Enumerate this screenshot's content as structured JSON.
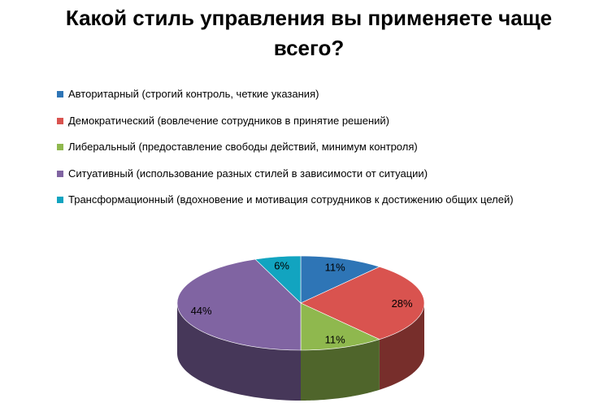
{
  "chart_data": {
    "type": "pie",
    "title": "Какой стиль управления вы применяете чаще всего?",
    "three_d": true,
    "legend_position": "top-left",
    "series": [
      {
        "label": "Авторитарный (строгий контроль, четкие указания)",
        "value": 11,
        "value_label": "11%",
        "color": "#2E75B6"
      },
      {
        "label": "Демократический (вовлечение сотрудников в принятие решений)",
        "value": 28,
        "value_label": "28%",
        "color": "#D9534F"
      },
      {
        "label": "Либеральный (предоставление свободы действий, минимум контроля)",
        "value": 11,
        "value_label": "11%",
        "color": "#8FB84E"
      },
      {
        "label": "Ситуативный (использование разных стилей в зависимости от ситуации)",
        "value": 44,
        "value_label": "44%",
        "color": "#8064A2"
      },
      {
        "label": "Трансформационный (вдохновение и мотивация сотрудников к достижению общих целей)",
        "value": 6,
        "value_label": "6%",
        "color": "#12A4C0"
      }
    ]
  }
}
